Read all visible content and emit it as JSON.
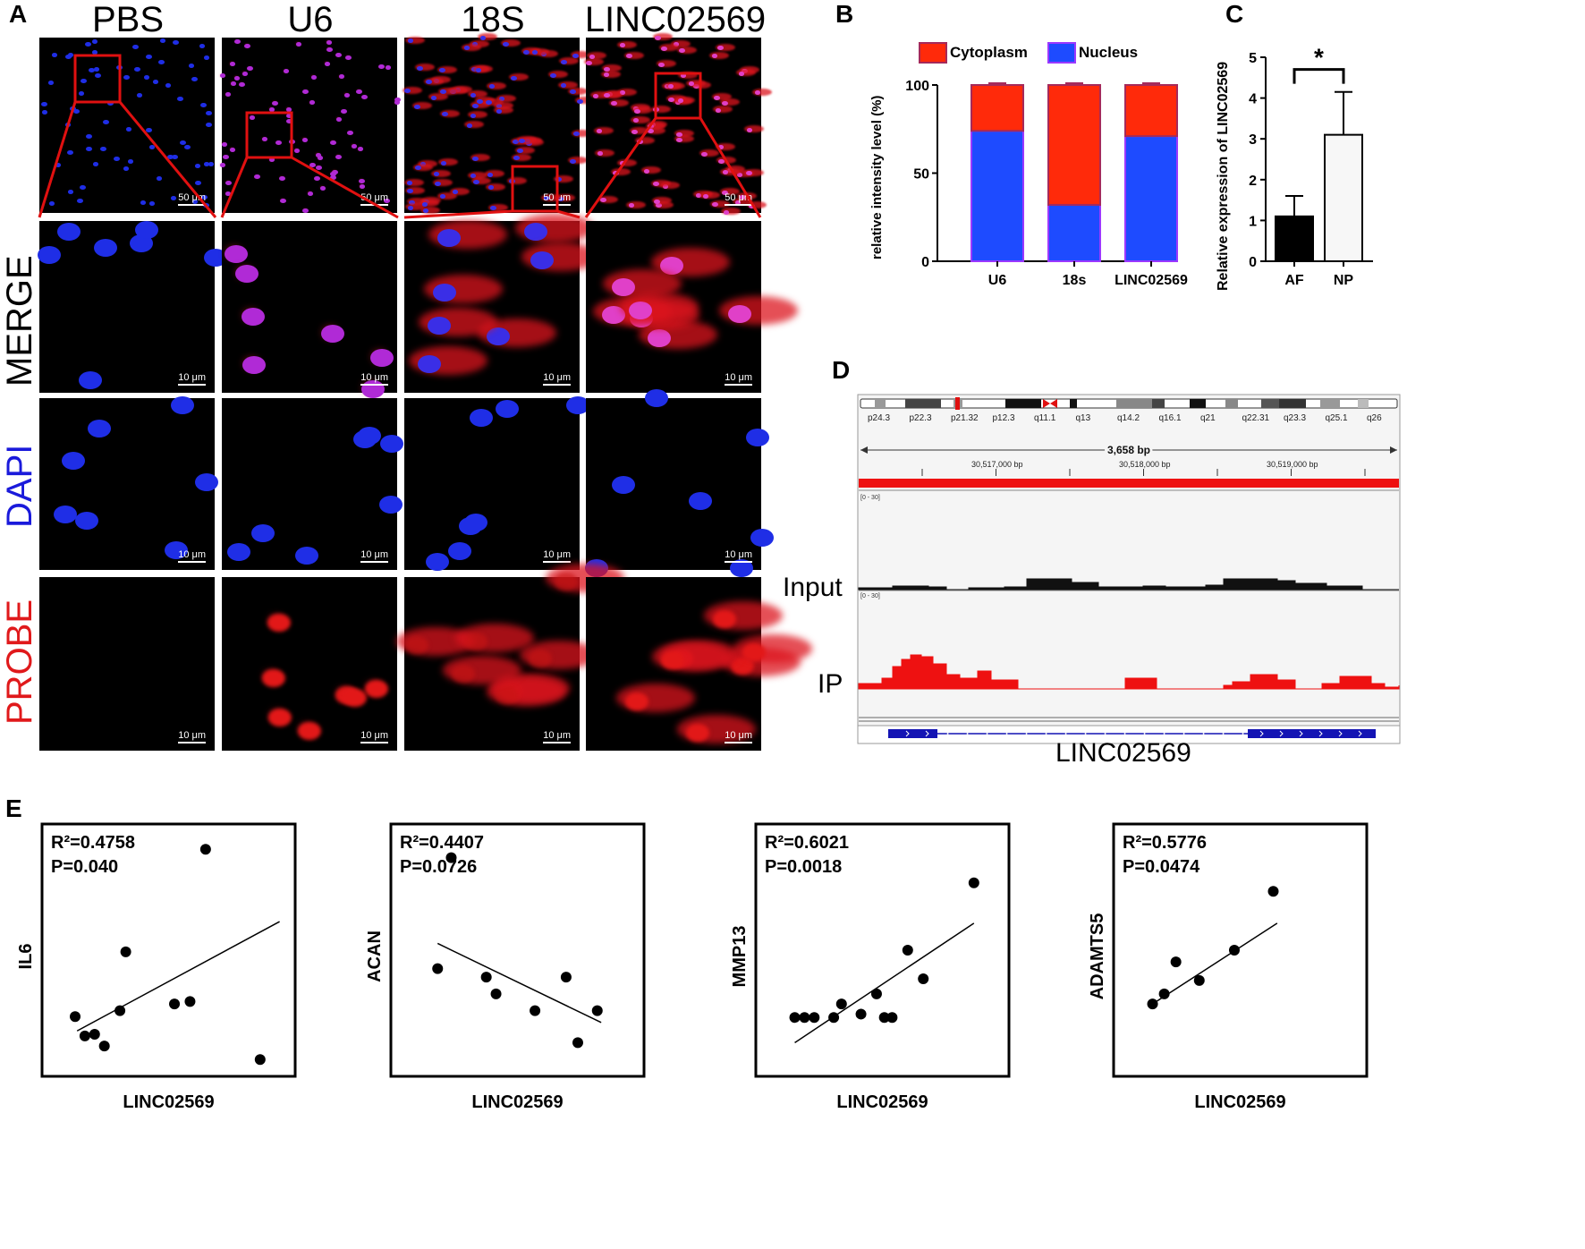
{
  "panel_A": {
    "label": "A",
    "columns": [
      "PBS",
      "U6",
      "18S",
      "LINC02569"
    ],
    "rows": [
      {
        "label": "MERGE",
        "color": "#000000"
      },
      {
        "label": "DAPI",
        "color": "#1a1adb"
      },
      {
        "label": "PROBE",
        "color": "#e0191b"
      }
    ],
    "scalebar_overview": "50 μm",
    "scalebar_zoom": "10 μm"
  },
  "panel_B": {
    "label": "B",
    "chart_data": {
      "type": "bar",
      "stacked": true,
      "categories": [
        "U6",
        "18s",
        "LINC02569"
      ],
      "series": [
        {
          "name": "Nucleus",
          "values": [
            74,
            32,
            71
          ],
          "color": "#1e4bff"
        },
        {
          "name": "Cytoplasm",
          "values": [
            26,
            68,
            29
          ],
          "color": "#ff2a0a"
        }
      ],
      "ylabel": "relative intensity level (%)",
      "ylim": [
        0,
        100
      ],
      "yticks": [
        "0",
        "50",
        "100"
      ],
      "legend": "top"
    }
  },
  "panel_C": {
    "label": "C",
    "chart_data": {
      "type": "bar",
      "categories": [
        "AF",
        "NP"
      ],
      "values": [
        1.1,
        3.1
      ],
      "errors": [
        0.5,
        1.05
      ],
      "ylabel": "Relative expression of LINC02569",
      "ylim": [
        0,
        5
      ],
      "yticks": [
        "0",
        "1",
        "2",
        "3",
        "4",
        "5"
      ],
      "significance": "*"
    }
  },
  "panel_D": {
    "label": "D",
    "bands": [
      "p24.3",
      "p22.3",
      "p21.32",
      "p12.3",
      "q11.1",
      "q13",
      "q14.2",
      "q16.1",
      "q21",
      "q22.31",
      "q23.3",
      "q25.1",
      "q26"
    ],
    "span": "3,658 bp",
    "positions": [
      "30,517,000 bp",
      "30,518,000 bp",
      "30,519,000 bp"
    ],
    "range_label": "[0 - 30]",
    "track_input": "Input",
    "track_ip": "IP",
    "gene": "LINC02569"
  },
  "panel_E": {
    "label": "E",
    "chart_data": [
      {
        "type": "scatter",
        "xlabel": "LINC02569",
        "ylabel": "IL6",
        "r2": "R²=0.4758",
        "p": "P=0.040",
        "x": [
          0.85,
          1.1,
          1.35,
          1.6,
          2.0,
          2.15,
          3.4,
          3.8,
          4.2,
          5.6
        ],
        "y": [
          2.55,
          1.4,
          1.5,
          0.8,
          2.9,
          6.4,
          3.3,
          3.45,
          12.5,
          0
        ],
        "line": [
          [
            0.9,
            1.7
          ],
          [
            6.1,
            8.2
          ]
        ]
      },
      {
        "type": "scatter",
        "xlabel": "LINC02569",
        "ylabel": "ACAN",
        "r2": "R²=0.4407",
        "p": "P=0.0726",
        "x": [
          1.2,
          1.55,
          2.45,
          2.7,
          3.7,
          4.5,
          4.8,
          5.3
        ],
        "y": [
          5.4,
          12.0,
          4.9,
          3.9,
          2.9,
          4.9,
          1.0,
          2.9
        ],
        "line": [
          [
            1.2,
            6.9
          ],
          [
            5.4,
            2.2
          ]
        ]
      },
      {
        "type": "scatter",
        "xlabel": "LINC02569",
        "ylabel": "MMP13",
        "r2": "R²=0.6021",
        "p": "P=0.0018",
        "x": [
          1.0,
          1.25,
          1.5,
          2.0,
          2.2,
          2.7,
          3.1,
          3.3,
          3.5,
          3.9,
          4.3,
          5.6
        ],
        "y": [
          2.5,
          2.5,
          2.5,
          2.5,
          3.3,
          2.7,
          3.9,
          2.5,
          2.5,
          6.5,
          4.8,
          10.5
        ],
        "line": [
          [
            1.0,
            1.0
          ],
          [
            5.6,
            8.1
          ]
        ]
      },
      {
        "type": "scatter",
        "xlabel": "LINC02569",
        "ylabel": "ADAMTS5",
        "r2": "R²=0.5776",
        "p": "P=0.0474",
        "x": [
          1.0,
          1.3,
          1.6,
          2.2,
          3.1,
          4.1
        ],
        "y": [
          3.3,
          3.9,
          5.8,
          4.7,
          6.5,
          10.0
        ],
        "line": [
          [
            1.0,
            3.3
          ],
          [
            4.2,
            8.1
          ]
        ]
      }
    ]
  }
}
